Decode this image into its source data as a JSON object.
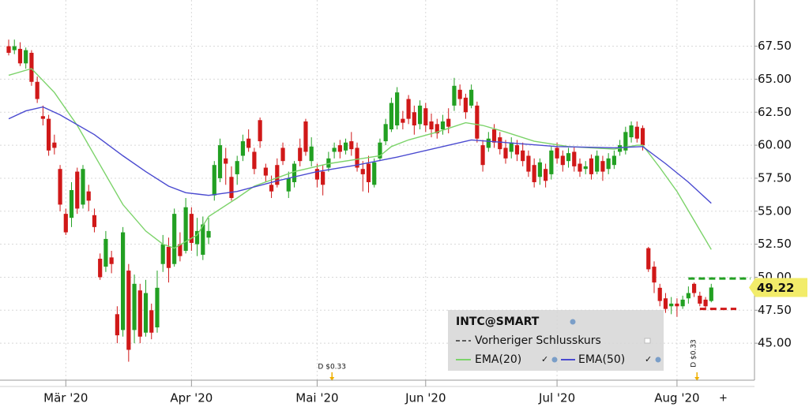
{
  "chart_data": {
    "type": "candlestick",
    "categories": [
      null,
      null,
      null,
      null,
      null,
      null,
      null,
      null,
      null,
      null,
      "Mär '20",
      null,
      null,
      null,
      null,
      null,
      null,
      null,
      null,
      null,
      null,
      null,
      null,
      null,
      null,
      null,
      null,
      null,
      null,
      null,
      null,
      null,
      "Apr '20",
      null,
      null,
      null,
      null,
      null,
      null,
      null,
      null,
      null,
      null,
      null,
      null,
      null,
      null,
      null,
      null,
      null,
      null,
      null,
      null,
      null,
      "Mai '20",
      null,
      null,
      null,
      null,
      null,
      null,
      null,
      null,
      null,
      null,
      null,
      null,
      null,
      null,
      null,
      null,
      null,
      null,
      "Jun '20",
      null,
      null,
      null,
      null,
      null,
      null,
      null,
      null,
      null,
      null,
      null,
      null,
      null,
      null,
      null,
      null,
      null,
      null,
      null,
      null,
      null,
      null,
      "Jul '20",
      null,
      null,
      null,
      null,
      null,
      null,
      null,
      null,
      null,
      null,
      null,
      null,
      null,
      null,
      null,
      null,
      null,
      null,
      null,
      null,
      "Aug '20",
      null,
      null,
      null,
      null,
      null,
      null
    ],
    "open": [
      67.5,
      67.2,
      67.3,
      66.2,
      67.0,
      64.8,
      62.2,
      62.0,
      60.2,
      58.2,
      54.8,
      54.5,
      58.0,
      55.5,
      56.5,
      54.7,
      51.4,
      50.8,
      51.5,
      47.2,
      46.0,
      50.5,
      46.0,
      49.0,
      45.8,
      47.5,
      46.2,
      51.0,
      52.3,
      51.0,
      52.5,
      52.0,
      54.8,
      52.5,
      51.7,
      53.0,
      56.2,
      57.5,
      59.0,
      57.6,
      57.8,
      59.2,
      60.5,
      59.5,
      61.9,
      58.3,
      57.0,
      58.5,
      59.8,
      56.5,
      57.2,
      59.8,
      61.8,
      58.8,
      58.2,
      58.0,
      58.3,
      59.5,
      60.0,
      59.6,
      60.3,
      59.8,
      58.2,
      58.6,
      57.0,
      59.0,
      60.3,
      61.2,
      61.5,
      62.0,
      63.5,
      62.5,
      61.6,
      62.8,
      61.8,
      61.6,
      61.2,
      62.0,
      63.0,
      64.2,
      63.6,
      63.0,
      63.0,
      60.0,
      59.8,
      61.2,
      60.6,
      59.8,
      59.5,
      60.0,
      59.6,
      59.2,
      58.5,
      57.6,
      58.2,
      57.8,
      59.8,
      59.2,
      58.8,
      59.5,
      58.6,
      58.2,
      59.0,
      58.0,
      58.8,
      58.2,
      58.5,
      59.5,
      59.6,
      60.6,
      61.4,
      61.3,
      52.2,
      50.8,
      49.2,
      48.4,
      47.8,
      48.0,
      47.8,
      48.4,
      49.5,
      48.6,
      48.3,
      48.2
    ],
    "high": [
      68.0,
      68.0,
      67.8,
      67.4,
      67.2,
      65.2,
      63.0,
      62.3,
      60.8,
      58.5,
      55.2,
      57.2,
      58.3,
      58.5,
      57.0,
      55.2,
      51.8,
      53.5,
      52.0,
      47.8,
      53.8,
      51.0,
      50.2,
      49.5,
      49.8,
      48.0,
      50.5,
      53.2,
      53.0,
      55.2,
      53.4,
      56.0,
      55.3,
      54.5,
      54.6,
      54.5,
      58.8,
      60.5,
      59.8,
      58.4,
      59.2,
      60.8,
      61.2,
      59.8,
      62.1,
      58.6,
      57.7,
      59.0,
      60.2,
      58.0,
      58.8,
      60.5,
      62.0,
      60.6,
      58.6,
      58.5,
      59.5,
      60.2,
      60.4,
      60.5,
      61.0,
      60.2,
      58.8,
      59.2,
      59.0,
      60.5,
      62.0,
      63.6,
      64.4,
      62.6,
      63.8,
      63.0,
      63.4,
      63.2,
      62.4,
      62.0,
      62.3,
      62.8,
      65.1,
      64.6,
      63.9,
      64.6,
      63.3,
      60.4,
      61.0,
      61.6,
      61.0,
      60.4,
      60.6,
      60.4,
      60.2,
      59.6,
      59.0,
      59.0,
      58.6,
      59.9,
      60.2,
      59.6,
      59.8,
      59.9,
      59.0,
      58.8,
      59.3,
      59.6,
      59.2,
      59.4,
      59.6,
      60.4,
      61.4,
      61.8,
      61.8,
      61.5,
      52.3,
      51.2,
      49.5,
      48.8,
      48.5,
      48.4,
      48.6,
      49.3,
      49.6,
      48.9,
      48.5,
      49.5
    ],
    "low": [
      66.8,
      66.9,
      66.0,
      65.8,
      64.5,
      63.2,
      61.5,
      59.2,
      59.3,
      55.0,
      53.2,
      53.8,
      54.8,
      55.2,
      55.0,
      53.4,
      49.8,
      50.4,
      50.3,
      45.0,
      45.5,
      43.6,
      45.0,
      45.0,
      45.5,
      45.3,
      45.8,
      50.4,
      49.6,
      50.8,
      51.2,
      51.8,
      52.0,
      51.6,
      51.3,
      52.5,
      55.8,
      57.2,
      57.0,
      55.8,
      57.0,
      58.8,
      59.5,
      57.8,
      59.8,
      57.2,
      56.0,
      56.8,
      58.5,
      56.0,
      56.8,
      58.4,
      59.2,
      58.4,
      56.8,
      56.2,
      58.0,
      59.0,
      59.0,
      59.3,
      59.2,
      58.0,
      56.5,
      56.4,
      56.8,
      58.8,
      60.0,
      61.0,
      61.2,
      61.2,
      61.6,
      60.8,
      61.2,
      61.0,
      60.6,
      60.5,
      60.8,
      60.9,
      62.6,
      63.0,
      62.0,
      62.8,
      60.2,
      58.0,
      59.5,
      59.8,
      59.3,
      58.6,
      59.0,
      58.8,
      58.4,
      57.6,
      56.8,
      57.0,
      56.8,
      57.4,
      58.6,
      58.0,
      58.3,
      58.0,
      57.6,
      57.8,
      57.4,
      57.8,
      57.3,
      57.8,
      58.2,
      59.2,
      59.3,
      60.2,
      60.2,
      59.6,
      50.4,
      48.8,
      47.8,
      47.3,
      47.2,
      47.0,
      47.6,
      48.0,
      48.5,
      47.8,
      47.5,
      48.1
    ],
    "close": [
      67.0,
      67.5,
      66.2,
      67.2,
      64.8,
      63.5,
      62.0,
      59.6,
      59.8,
      55.5,
      53.4,
      56.6,
      55.2,
      58.2,
      55.8,
      53.8,
      50.0,
      52.9,
      51.0,
      45.6,
      53.4,
      44.5,
      49.5,
      45.5,
      48.8,
      45.8,
      49.2,
      52.5,
      50.7,
      54.8,
      51.6,
      55.3,
      52.6,
      53.5,
      54.0,
      53.5,
      58.5,
      60.0,
      58.6,
      56.0,
      58.8,
      60.3,
      59.8,
      58.2,
      60.3,
      57.7,
      56.5,
      57.0,
      58.8,
      57.5,
      58.6,
      58.8,
      59.5,
      59.9,
      57.4,
      57.0,
      59.0,
      59.8,
      59.5,
      60.2,
      59.7,
      58.3,
      57.8,
      57.2,
      58.7,
      60.2,
      61.6,
      63.2,
      64.0,
      61.7,
      62.0,
      61.5,
      63.0,
      61.5,
      61.2,
      60.9,
      61.8,
      61.4,
      64.5,
      63.5,
      62.5,
      64.2,
      60.5,
      58.5,
      60.5,
      60.2,
      59.7,
      59.0,
      60.2,
      59.3,
      58.8,
      58.0,
      57.2,
      58.7,
      57.3,
      59.6,
      59.0,
      58.5,
      59.4,
      58.4,
      58.0,
      58.4,
      57.8,
      59.2,
      58.0,
      59.0,
      59.2,
      60.0,
      61.0,
      61.5,
      60.5,
      60.0,
      50.6,
      49.6,
      48.2,
      47.6,
      48.0,
      47.8,
      48.3,
      48.8,
      48.8,
      48.0,
      47.8,
      49.22
    ],
    "up_color": "#22a022",
    "down_color": "#d01818",
    "series": [
      {
        "name": "EMA(20)",
        "color": "#7cd36a",
        "x": [
          0,
          4,
          8,
          12,
          16,
          20,
          24,
          27,
          29,
          33,
          35,
          40,
          43,
          50,
          56,
          62,
          65,
          67,
          70,
          75,
          80,
          83,
          87,
          92,
          98,
          106,
          110,
          111,
          114,
          117,
          120,
          123
        ],
        "values": [
          65.3,
          65.8,
          64.0,
          61.5,
          58.5,
          55.5,
          53.5,
          52.5,
          52.2,
          53.2,
          54.6,
          56.0,
          56.9,
          58.0,
          58.6,
          59.0,
          59.2,
          59.9,
          60.4,
          61.0,
          61.7,
          61.5,
          61.0,
          60.3,
          59.9,
          59.7,
          60.0,
          60.0,
          58.3,
          56.5,
          54.3,
          52.1
        ]
      },
      {
        "name": "EMA(50)",
        "color": "#4a4ad0",
        "x": [
          0,
          3,
          6,
          9,
          15,
          20,
          24,
          28,
          31,
          35,
          40,
          47,
          54,
          61,
          68,
          76,
          81,
          90,
          96,
          106,
          111,
          115,
          119,
          123
        ],
        "values": [
          62.0,
          62.6,
          62.9,
          62.3,
          60.8,
          59.2,
          58.0,
          56.9,
          56.4,
          56.2,
          56.5,
          57.3,
          58.0,
          58.5,
          59.1,
          59.9,
          60.4,
          60.1,
          59.9,
          59.8,
          59.9,
          58.6,
          57.2,
          55.6
        ]
      }
    ],
    "reference_line": {
      "name": "Vorheriger Schlusskurs",
      "value": 47.6,
      "color": "#d01818"
    },
    "level_line": {
      "value": 49.9,
      "color": "#22a022"
    },
    "legend_title": "INTC@SMART",
    "dividends": [
      {
        "label": "D $0.33",
        "x": 56.6
      },
      {
        "label": "D $0.33",
        "x": 120.5
      }
    ],
    "ylim": [
      42.2,
      71.0
    ],
    "yticks": [
      {
        "value": 45,
        "label": "45.00"
      },
      {
        "value": 47.5,
        "label": "47.50"
      },
      {
        "value": 50,
        "label": "50.00"
      },
      {
        "value": 52.5,
        "label": "52.50"
      },
      {
        "value": 55,
        "label": "55.00"
      },
      {
        "value": 57.5,
        "label": "57.50"
      },
      {
        "value": 60,
        "label": "60.00"
      },
      {
        "value": 62.5,
        "label": "62.50"
      },
      {
        "value": 65,
        "label": "65.00"
      },
      {
        "value": 67.5,
        "label": "67.50"
      }
    ],
    "grid": true
  }
}
